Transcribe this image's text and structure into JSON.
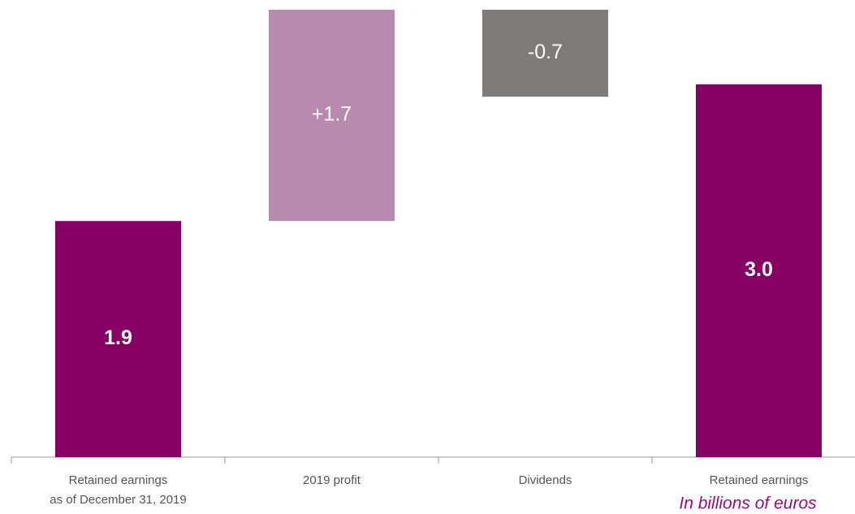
{
  "chart_data": {
    "type": "waterfall",
    "categories": [
      [
        "Retained earnings",
        "as of December 31, 2019"
      ],
      [
        "2019 profit"
      ],
      [
        "Dividends"
      ],
      [
        "Retained earnings"
      ]
    ],
    "values": [
      1.9,
      1.7,
      -0.7,
      3.0
    ],
    "value_labels": [
      "1.9",
      "+1.7",
      "-0.7",
      "3.0"
    ],
    "colors": [
      "#870064",
      "#b98ab0",
      "#7f7b79",
      "#870064"
    ],
    "annotation": "In billions of euros"
  }
}
